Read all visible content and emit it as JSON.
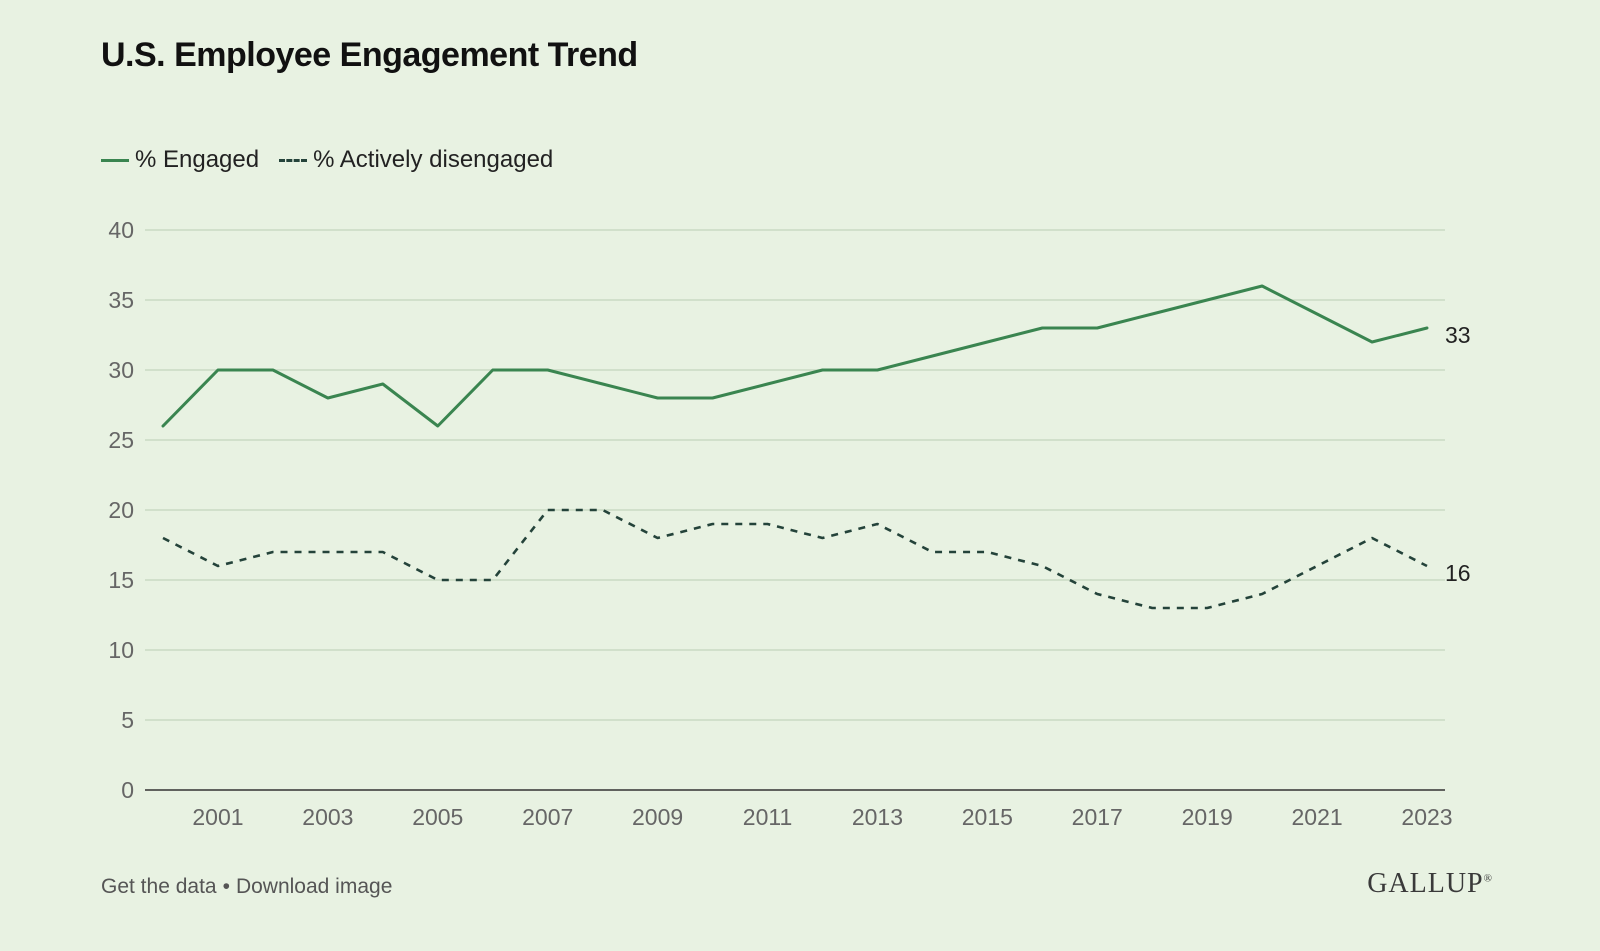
{
  "title": "U.S. Employee Engagement Trend",
  "legend": {
    "engaged": "% Engaged",
    "disengaged": "% Actively disengaged"
  },
  "footer": {
    "get_data": "Get the data",
    "separator": "•",
    "download": "Download image"
  },
  "brand": "GALLUP",
  "colors": {
    "background": "#e8f2e2",
    "engaged": "#3a8550",
    "disengaged": "#24433a",
    "grid": "#c9d9c3"
  },
  "chart_data": {
    "type": "line",
    "title": "U.S. Employee Engagement Trend",
    "x": [
      2000,
      2001,
      2002,
      2003,
      2004,
      2005,
      2006,
      2007,
      2008,
      2009,
      2010,
      2011,
      2012,
      2013,
      2014,
      2015,
      2016,
      2017,
      2018,
      2019,
      2020,
      2021,
      2022,
      2023
    ],
    "x_tick_labels": [
      "2001",
      "2003",
      "2005",
      "2007",
      "2009",
      "2011",
      "2013",
      "2015",
      "2017",
      "2019",
      "2021",
      "2023"
    ],
    "y_tick_labels": [
      "0",
      "5",
      "10",
      "15",
      "20",
      "25",
      "30",
      "35",
      "40"
    ],
    "ylim": [
      0,
      40
    ],
    "xlabel": "",
    "ylabel": "",
    "grid": true,
    "legend_position": "top-left",
    "series": [
      {
        "name": "% Engaged",
        "style": "solid",
        "values": [
          26,
          30,
          30,
          28,
          29,
          26,
          30,
          30,
          29,
          28,
          28,
          29,
          30,
          30,
          31,
          32,
          33,
          33,
          34,
          35,
          36,
          34,
          32,
          33
        ],
        "end_label": "33"
      },
      {
        "name": "% Actively disengaged",
        "style": "dashed",
        "values": [
          18,
          16,
          17,
          17,
          17,
          15,
          15,
          20,
          20,
          18,
          19,
          19,
          18,
          19,
          17,
          17,
          16,
          14,
          13,
          13,
          14,
          16,
          18,
          16
        ],
        "end_label": "16"
      }
    ]
  }
}
